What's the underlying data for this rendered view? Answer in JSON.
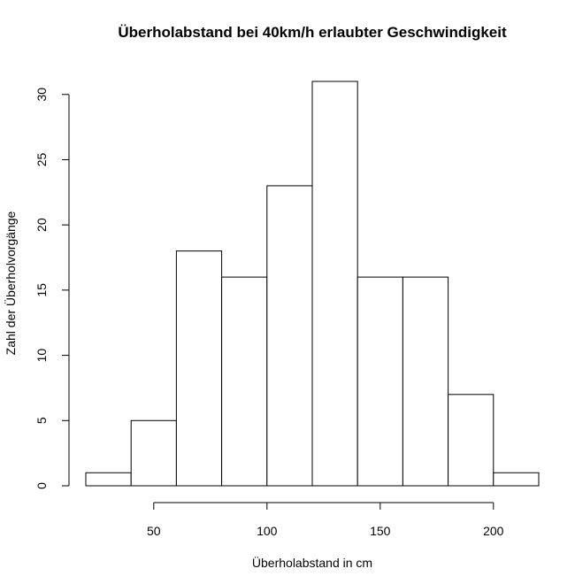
{
  "chart_data": {
    "type": "histogram",
    "title": "Überholabstand bei 40km/h erlaubter Geschwindigkeit",
    "xlabel": "Überholabstand in cm",
    "ylabel": "Zahl der Überholvorgänge",
    "bins": [
      {
        "start": 20,
        "end": 40,
        "count": 1
      },
      {
        "start": 40,
        "end": 60,
        "count": 5
      },
      {
        "start": 60,
        "end": 80,
        "count": 18
      },
      {
        "start": 80,
        "end": 100,
        "count": 16
      },
      {
        "start": 100,
        "end": 120,
        "count": 23
      },
      {
        "start": 120,
        "end": 140,
        "count": 31
      },
      {
        "start": 140,
        "end": 160,
        "count": 16
      },
      {
        "start": 160,
        "end": 180,
        "count": 16
      },
      {
        "start": 180,
        "end": 200,
        "count": 7
      },
      {
        "start": 200,
        "end": 220,
        "count": 1
      }
    ],
    "x_ticks": [
      50,
      100,
      150,
      200
    ],
    "y_ticks": [
      0,
      5,
      10,
      15,
      20,
      25,
      30
    ],
    "xlim": [
      20,
      220
    ],
    "ylim": [
      0,
      31
    ],
    "grid": false,
    "colors": {
      "bar_fill": "#ffffff",
      "bar_stroke": "#000000"
    }
  }
}
